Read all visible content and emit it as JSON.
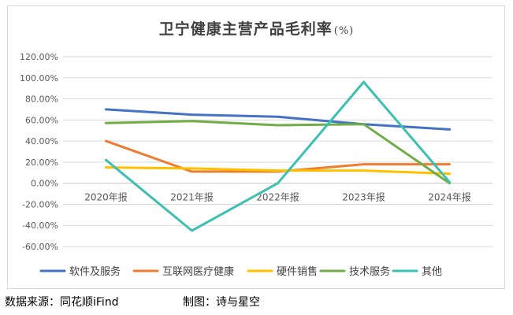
{
  "chart_data": {
    "type": "line",
    "title": "卫宁健康主营产品毛利率",
    "title_unit": "(%)",
    "categories": [
      "2020年报",
      "2021年报",
      "2022年报",
      "2023年报",
      "2024年报"
    ],
    "y_ticks": [
      "120.00%",
      "100.00%",
      "80.00%",
      "60.00%",
      "40.00%",
      "20.00%",
      "0.00%",
      "-20.00%",
      "-40.00%",
      "-60.00%"
    ],
    "ylim": [
      -60,
      120
    ],
    "grid": true,
    "legend_position": "bottom",
    "series": [
      {
        "name": "软件及服务",
        "color": "#4472C4",
        "values": [
          70,
          65,
          63,
          56,
          51
        ]
      },
      {
        "name": "互联网医疗健康",
        "color": "#ED7D31",
        "values": [
          40,
          11,
          11,
          18,
          18
        ]
      },
      {
        "name": "硬件销售",
        "color": "#FFC000",
        "values": [
          15,
          14,
          12,
          12,
          9
        ]
      },
      {
        "name": "技术服务",
        "color": "#70AD47",
        "values": [
          57,
          59,
          55,
          56,
          0
        ]
      },
      {
        "name": "其他",
        "color": "#3DBFB2",
        "values": [
          22,
          -45,
          0,
          96,
          1
        ]
      }
    ]
  },
  "footer": {
    "source": "数据来源：同花顺iFind",
    "credit": "制图：诗与星空"
  }
}
